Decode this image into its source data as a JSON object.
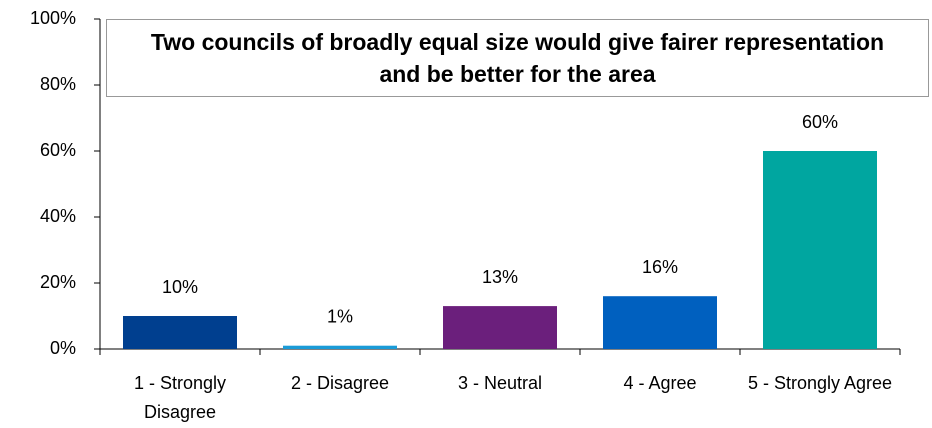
{
  "chart_data": {
    "type": "bar",
    "title": "Two councils of broadly equal size would give fairer representation and be better for the area",
    "categories": [
      "1 - Strongly Disagree",
      "2 - Disagree",
      "3 - Neutral",
      "4 - Agree",
      "5 - Strongly Agree"
    ],
    "values": [
      10,
      1,
      13,
      16,
      60
    ],
    "value_labels": [
      "10%",
      "1%",
      "13%",
      "16%",
      "60%"
    ],
    "colors": [
      "#003f8f",
      "#1a9bd7",
      "#6b1f7c",
      "#0060bf",
      "#00a6a0"
    ],
    "ylim": [
      0,
      100
    ],
    "yticks": [
      {
        "value": 0,
        "label": "0%"
      },
      {
        "value": 20,
        "label": "20%"
      },
      {
        "value": 40,
        "label": "40%"
      },
      {
        "value": 60,
        "label": "60%"
      },
      {
        "value": 80,
        "label": "80%"
      },
      {
        "value": 100,
        "label": "100%"
      }
    ],
    "grid": false
  }
}
